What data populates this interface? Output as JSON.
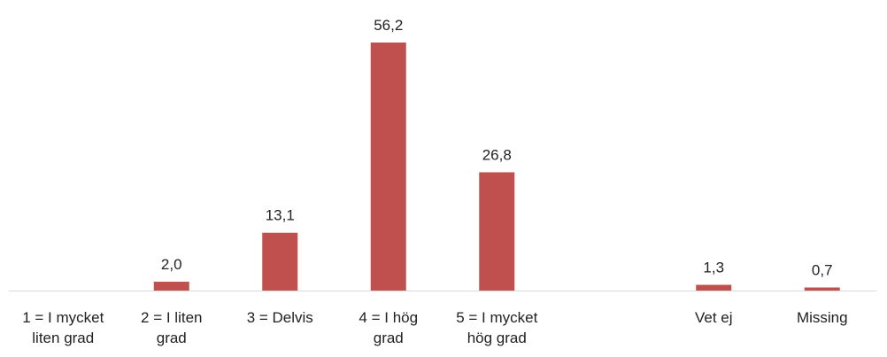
{
  "chart_data": {
    "type": "bar",
    "categories": [
      [
        "1 = I mycket",
        "liten grad"
      ],
      [
        "2 = I liten",
        "grad"
      ],
      [
        "3 = Delvis"
      ],
      [
        "4 = I hög",
        "grad"
      ],
      [
        "5 = I mycket",
        "hög grad"
      ],
      [
        ""
      ],
      [
        "Vet ej"
      ],
      [
        "Missing"
      ]
    ],
    "values": [
      0,
      2.0,
      13.1,
      56.2,
      26.8,
      null,
      1.3,
      0.7
    ],
    "value_labels": [
      "",
      "2,0",
      "13,1",
      "56,2",
      "26,8",
      "",
      "1,3",
      "0,7"
    ],
    "ylim": [
      0,
      60
    ],
    "grid": false,
    "legend": "none",
    "bar_color": "#C0504D",
    "axis_color": "#D9D9D9"
  }
}
